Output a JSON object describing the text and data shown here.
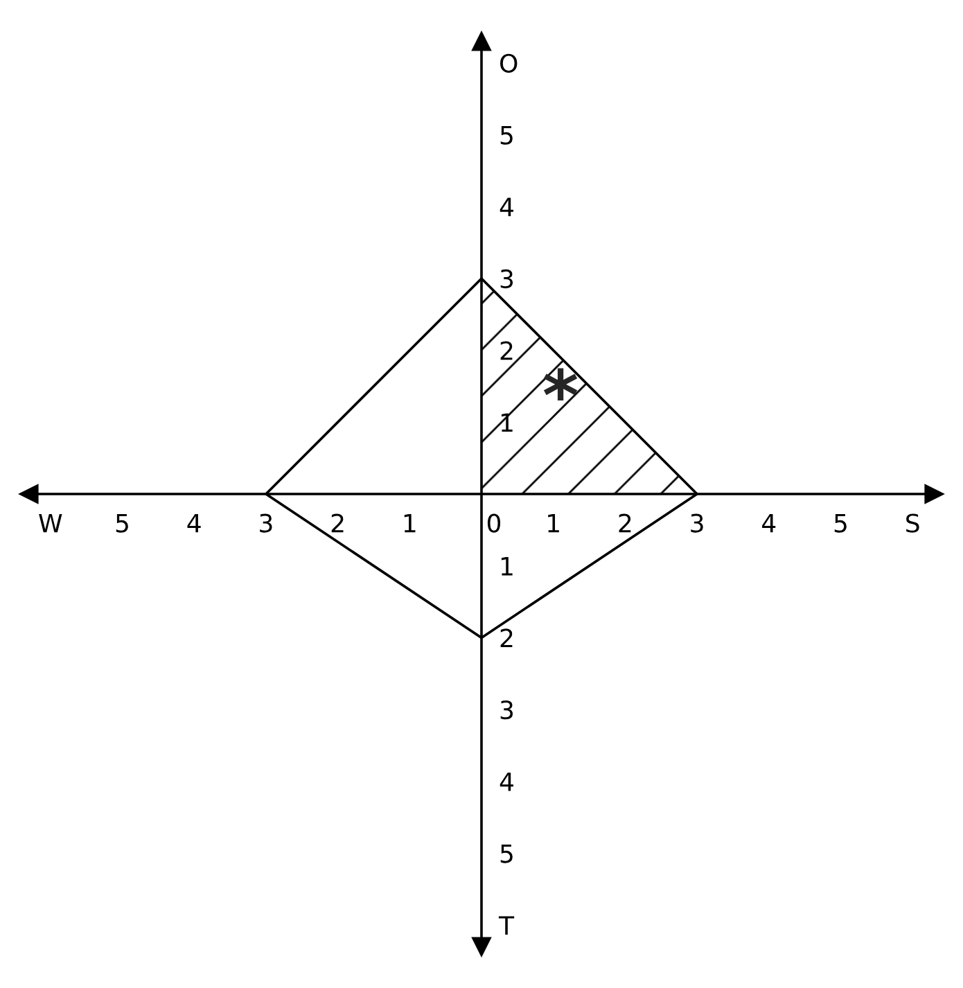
{
  "chart_data": {
    "type": "line",
    "x": [
      -3,
      0,
      3
    ],
    "series": [
      {
        "color": "#000000",
        "values": [
          0,
          3,
          0
        ]
      },
      {
        "color": "#000000",
        "values": [
          0,
          -2,
          0
        ]
      }
    ],
    "xlim": [
      -6.3,
      6.3
    ],
    "ylim": [
      -6.3,
      6.3
    ],
    "xticks": [
      {
        "value": -6,
        "label": "W"
      },
      {
        "value": -5,
        "label": "5"
      },
      {
        "value": -4,
        "label": "4"
      },
      {
        "value": -3,
        "label": "3"
      },
      {
        "value": -2,
        "label": "2"
      },
      {
        "value": -1,
        "label": "1"
      },
      0,
      1,
      2,
      3,
      4,
      5,
      {
        "value": 6,
        "label": "S"
      }
    ],
    "yticks": [
      {
        "value": -6,
        "label": "T"
      },
      {
        "value": -5,
        "label": "5"
      },
      {
        "value": -4,
        "label": "4"
      },
      {
        "value": -3,
        "label": "3"
      },
      {
        "value": -2,
        "label": "2"
      },
      {
        "value": -1,
        "label": "1"
      },
      1,
      2,
      3,
      4,
      5,
      {
        "value": 6,
        "label": "O"
      }
    ],
    "annotations": [
      "*"
    ],
    "grid": false,
    "legend": false,
    "marker": "none",
    "line_style": "solid"
  }
}
